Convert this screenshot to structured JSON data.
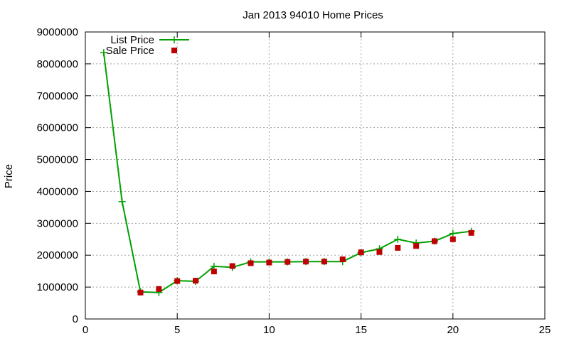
{
  "chart_data": {
    "type": "line",
    "title": "Jan 2013 94010 Home Prices",
    "xlabel": "",
    "ylabel": "Price",
    "xlim": [
      0,
      25
    ],
    "ylim": [
      0,
      9000000
    ],
    "x_ticks": [
      0,
      5,
      10,
      15,
      20,
      25
    ],
    "y_ticks": [
      0,
      1000000,
      2000000,
      3000000,
      4000000,
      5000000,
      6000000,
      7000000,
      8000000,
      9000000
    ],
    "grid": true,
    "legend_position": "top-left",
    "series": [
      {
        "name": "List Price",
        "style": "line-plus",
        "color": "#00a000",
        "points": [
          [
            1,
            8350000
          ],
          [
            2,
            3680000
          ],
          [
            3,
            850000
          ],
          [
            4,
            830000
          ],
          [
            5,
            1200000
          ],
          [
            6,
            1180000
          ],
          [
            7,
            1650000
          ],
          [
            8,
            1620000
          ],
          [
            9,
            1790000
          ],
          [
            10,
            1790000
          ],
          [
            11,
            1790000
          ],
          [
            12,
            1800000
          ],
          [
            13,
            1800000
          ],
          [
            14,
            1800000
          ],
          [
            15,
            2080000
          ],
          [
            16,
            2200000
          ],
          [
            17,
            2500000
          ],
          [
            18,
            2380000
          ],
          [
            19,
            2440000
          ],
          [
            20,
            2680000
          ],
          [
            21,
            2750000
          ]
        ]
      },
      {
        "name": "Sale Price",
        "style": "square",
        "color": "#c00000",
        "points": [
          [
            3,
            830000
          ],
          [
            4,
            940000
          ],
          [
            5,
            1190000
          ],
          [
            6,
            1200000
          ],
          [
            7,
            1490000
          ],
          [
            8,
            1660000
          ],
          [
            9,
            1750000
          ],
          [
            10,
            1770000
          ],
          [
            11,
            1790000
          ],
          [
            12,
            1800000
          ],
          [
            13,
            1800000
          ],
          [
            14,
            1870000
          ],
          [
            15,
            2090000
          ],
          [
            16,
            2100000
          ],
          [
            17,
            2230000
          ],
          [
            18,
            2290000
          ],
          [
            19,
            2440000
          ],
          [
            20,
            2500000
          ],
          [
            21,
            2700000
          ]
        ]
      }
    ]
  }
}
